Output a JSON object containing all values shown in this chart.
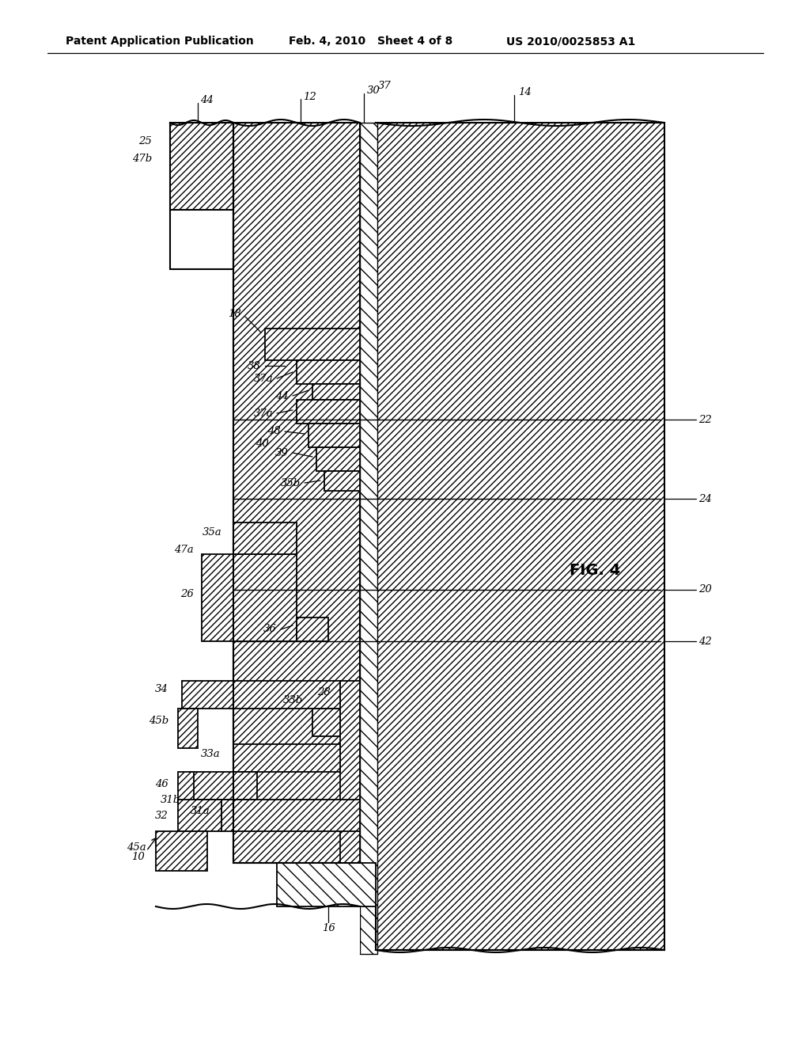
{
  "bg_color": "#ffffff",
  "header_text": "Patent Application Publication",
  "header_date": "Feb. 4, 2010",
  "header_sheet": "Sheet 4 of 8",
  "header_patent": "US 2010/0025853 A1",
  "fig_label": "FIG. 4"
}
